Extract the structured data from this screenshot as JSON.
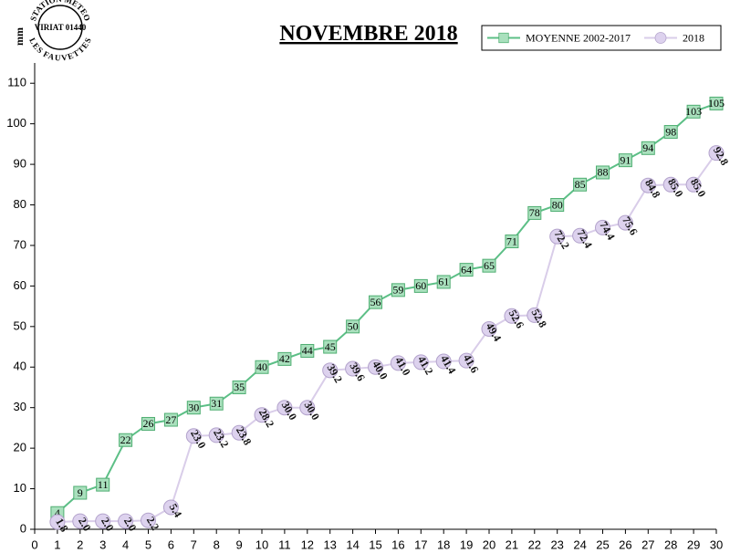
{
  "logo": {
    "top": "STATION METEO",
    "middle": "VIRIAT 01440",
    "bottom": "LES FAUVETTES"
  },
  "chart_data": {
    "type": "line",
    "title": "NOVEMBRE 2018",
    "y_label": "mm",
    "x": [
      1,
      2,
      3,
      4,
      5,
      6,
      7,
      8,
      9,
      10,
      11,
      12,
      13,
      14,
      15,
      16,
      17,
      18,
      19,
      20,
      21,
      22,
      23,
      24,
      25,
      26,
      27,
      28,
      29,
      30
    ],
    "xlim": [
      0,
      30
    ],
    "xticks": [
      0,
      1,
      2,
      3,
      4,
      5,
      6,
      7,
      8,
      9,
      10,
      11,
      12,
      13,
      14,
      15,
      16,
      17,
      18,
      19,
      20,
      21,
      22,
      23,
      24,
      25,
      26,
      27,
      28,
      29,
      30
    ],
    "ylim": [
      0,
      115
    ],
    "yticks": [
      0,
      10,
      20,
      30,
      40,
      50,
      60,
      70,
      80,
      90,
      100,
      110
    ],
    "legend": "top-right",
    "series": [
      {
        "name": "MOYENNE 2002-2017",
        "color": "#5cbf86",
        "marker": "square",
        "values": [
          4,
          9,
          11,
          22,
          26,
          27,
          30,
          31,
          35,
          40,
          42,
          44,
          45,
          50,
          56,
          59,
          60,
          61,
          64,
          65,
          71,
          78,
          80,
          85,
          88,
          91,
          94,
          98,
          103,
          105
        ]
      },
      {
        "name": "2018",
        "color": "#d9cde9",
        "marker": "circle",
        "values": [
          1.8,
          2.0,
          2.0,
          2.0,
          2.2,
          5.4,
          23.0,
          23.2,
          23.8,
          28.2,
          30.0,
          30.0,
          39.2,
          39.6,
          40.0,
          41.0,
          41.2,
          41.4,
          41.6,
          49.4,
          52.6,
          52.8,
          72.2,
          72.4,
          74.4,
          75.6,
          84.8,
          85.0,
          85.0,
          92.8
        ],
        "value_labels": [
          "1.8",
          "2.0",
          "2.0",
          "2.0",
          "2.2",
          "5.4",
          "23.0",
          "23.2",
          "23.8",
          "28.2",
          "30.0",
          "30.0",
          "39.2",
          "39.6",
          "40.0",
          "41.0",
          "41.2",
          "41.4",
          "41.6",
          "49.4",
          "52.6",
          "52.8",
          "72.2",
          "72.4",
          "74.4",
          "75.6",
          "84.8",
          "85.0",
          "85.0",
          "92.8"
        ]
      }
    ]
  }
}
